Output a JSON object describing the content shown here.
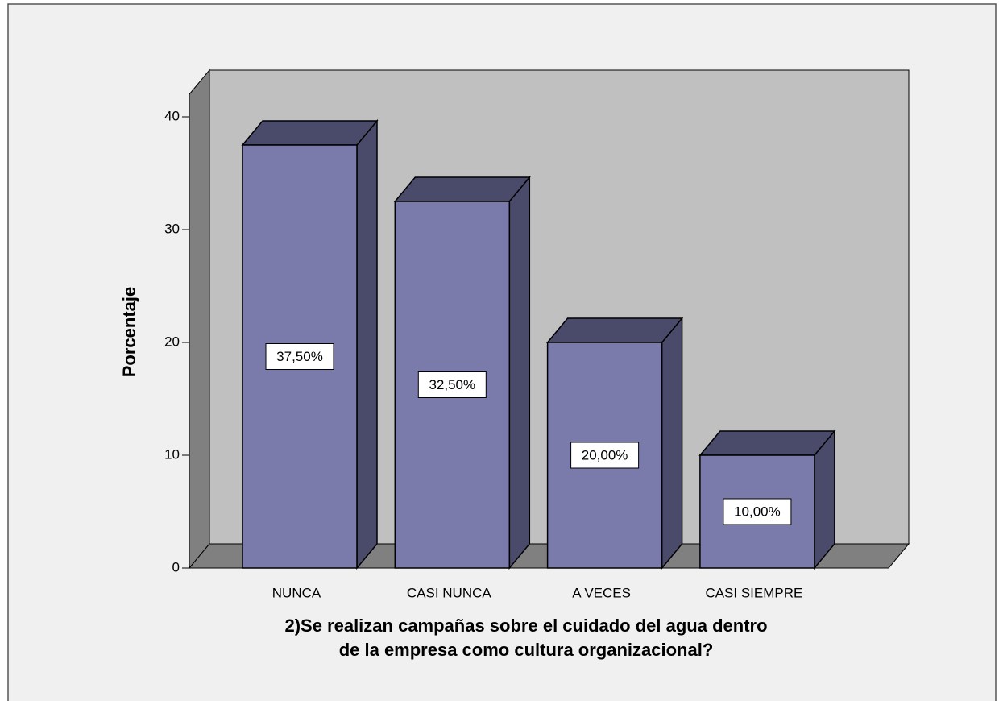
{
  "chart_data": {
    "type": "bar3d",
    "categories": [
      "NUNCA",
      "CASI NUNCA",
      "A VECES",
      "CASI SIEMPRE"
    ],
    "values": [
      37.5,
      32.5,
      20,
      10
    ],
    "value_labels": [
      "37,50%",
      "32,50%",
      "20,00%",
      "10,00%"
    ],
    "color": "#7a7aab",
    "side_color": "#4a4a6b",
    "ylim": [
      0,
      42
    ],
    "yticks": [
      0,
      10,
      20,
      30,
      40
    ],
    "ylabel": "Porcentaje",
    "xlabel": [
      "2)Se realizan campañas sobre el cuidado del agua dentro",
      "de la empresa como cultura organizacional?"
    ]
  }
}
